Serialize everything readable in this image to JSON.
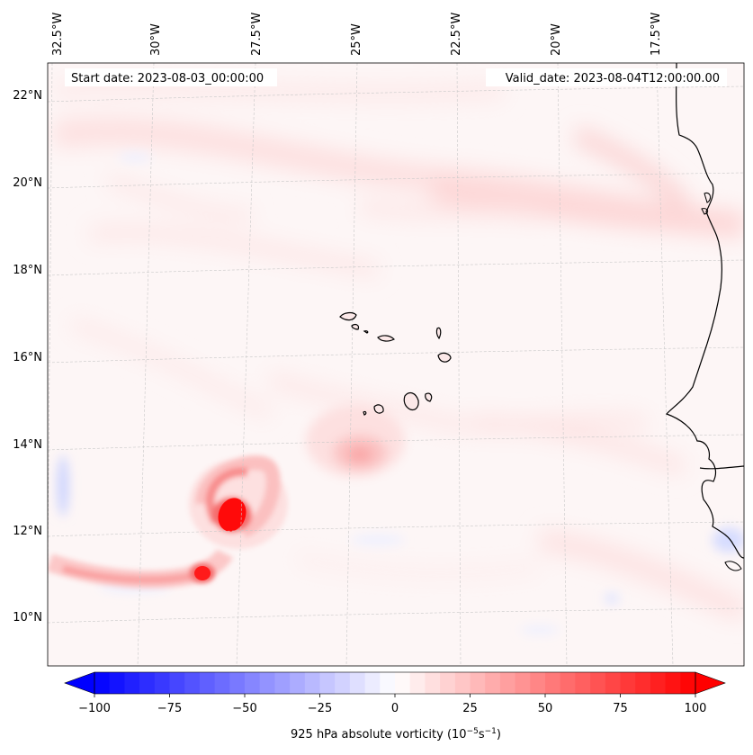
{
  "header": {
    "start_date": "Start date: 2023-08-03_00:00:00",
    "valid_date": "Valid_date: 2023-08-04T12:00:00.00"
  },
  "map": {
    "projection": "oblique (tilted graticule)",
    "longitude_labels": [
      "32.5°W",
      "30°W",
      "27.5°W",
      "25°W",
      "22.5°W",
      "20°W",
      "17.5°W"
    ],
    "latitude_labels": [
      "22°N",
      "20°N",
      "18°N",
      "16°N",
      "14°N",
      "12°N",
      "10°N"
    ],
    "gridlines": "dashed light grey",
    "features": [
      "Cape Verde islands",
      "West African coastline",
      "Tropical vortex near 12.3°N 27.6°W"
    ]
  },
  "chart_data": {
    "type": "heatmap",
    "variable": "925 hPa absolute vorticity",
    "colormap": "bwr",
    "vmin": -100,
    "vmax": 100,
    "extend": "both",
    "features": [
      {
        "name": "vortex core",
        "lon": -27.6,
        "lat": 12.3,
        "value": 100
      },
      {
        "name": "secondary maximum",
        "lon": -27.9,
        "lat": 10.9,
        "value": 85
      },
      {
        "name": "vorticity band",
        "lon": -30.5,
        "lat": 10.9,
        "value": 25
      },
      {
        "name": "maximum southwest of Cape Verde",
        "lon": -25.2,
        "lat": 13.7,
        "value": 35
      }
    ]
  },
  "colorbar": {
    "label_main": "925 hPa absolute vorticity (10",
    "label_exp1": "−5",
    "label_mid": "s",
    "label_exp2": "−1",
    "label_end": ")",
    "tick_labels": [
      "−100",
      "−75",
      "−50",
      "−25",
      "0",
      "25",
      "50",
      "75",
      "100"
    ],
    "colors": {
      "low": "#0000ff",
      "mid": "#ffffff",
      "high": "#ff0000"
    }
  }
}
